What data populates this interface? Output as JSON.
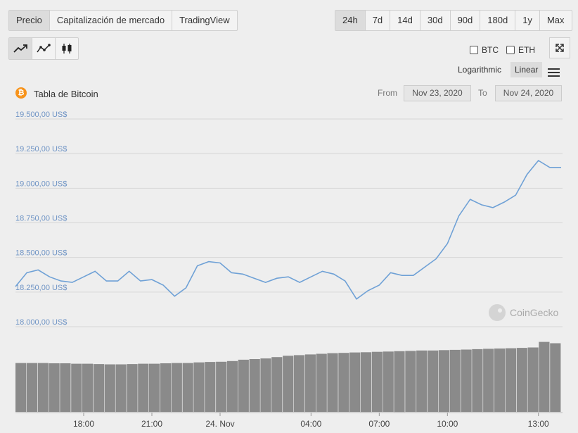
{
  "tabs": [
    "Precio",
    "Capitalización de mercado",
    "TradingView"
  ],
  "ranges": [
    "24h",
    "7d",
    "14d",
    "30d",
    "90d",
    "180d",
    "1y",
    "Max"
  ],
  "active_range": "24h",
  "checkboxes": {
    "btc": "BTC",
    "eth": "ETH"
  },
  "scale": {
    "log": "Logarithmic",
    "linear": "Linear",
    "active": "Linear"
  },
  "chart_title": "Tabla de Bitcoin",
  "from_label": "From",
  "from_date": "Nov 23, 2020",
  "to_label": "To",
  "to_date": "Nov 24, 2020",
  "watermark": "CoinGecko",
  "colors": {
    "line": "#6fa1d6",
    "volume": "#8a8a8a",
    "bitcoin": "#f7931a",
    "axis_text": "#6f94c5"
  },
  "chart_data": {
    "type": "line",
    "title": "Tabla de Bitcoin",
    "ylim": [
      18000,
      19500
    ],
    "yticks": [
      "19.500,00 US$",
      "19.250,00 US$",
      "19.000,00 US$",
      "18.750,00 US$",
      "18.500,00 US$",
      "18.250,00 US$",
      "18.000,00 US$"
    ],
    "xticks": [
      "18:00",
      "21:00",
      "24. Nov",
      "04:00",
      "07:00",
      "10:00",
      "13:00"
    ],
    "x_hours": [
      0,
      0.5,
      1,
      1.5,
      2,
      2.5,
      3,
      3.5,
      4,
      4.5,
      5,
      5.5,
      6,
      6.5,
      7,
      7.5,
      8,
      8.5,
      9,
      9.5,
      10,
      10.5,
      11,
      11.5,
      12,
      12.5,
      13,
      13.5,
      14,
      14.5,
      15,
      15.5,
      16,
      16.5,
      17,
      17.5,
      18,
      18.5,
      19,
      19.5,
      20,
      20.5,
      21,
      21.5,
      22,
      22.5,
      23,
      23.5,
      24
    ],
    "series": [
      {
        "values": [
          18290,
          18390,
          18410,
          18360,
          18330,
          18320,
          18360,
          18400,
          18330,
          18330,
          18400,
          18330,
          18340,
          18300,
          18220,
          18280,
          18440,
          18470,
          18460,
          18390,
          18380,
          18350,
          18320,
          18350,
          18360,
          18320,
          18360,
          18400,
          18380,
          18330,
          18200,
          18260,
          18300,
          18390,
          18370,
          18370,
          18430,
          18490,
          18600,
          18800,
          18920,
          18880,
          18860,
          18900,
          18950,
          19100,
          19200,
          19150,
          19150
        ]
      }
    ],
    "volume": [
      370,
      370,
      370,
      368,
      368,
      365,
      365,
      362,
      360,
      360,
      362,
      365,
      365,
      368,
      370,
      370,
      375,
      378,
      380,
      385,
      395,
      400,
      405,
      415,
      425,
      430,
      435,
      440,
      445,
      447,
      450,
      452,
      455,
      457,
      460,
      462,
      465,
      465,
      468,
      470,
      472,
      475,
      478,
      480,
      482,
      485,
      488,
      530,
      520
    ]
  }
}
